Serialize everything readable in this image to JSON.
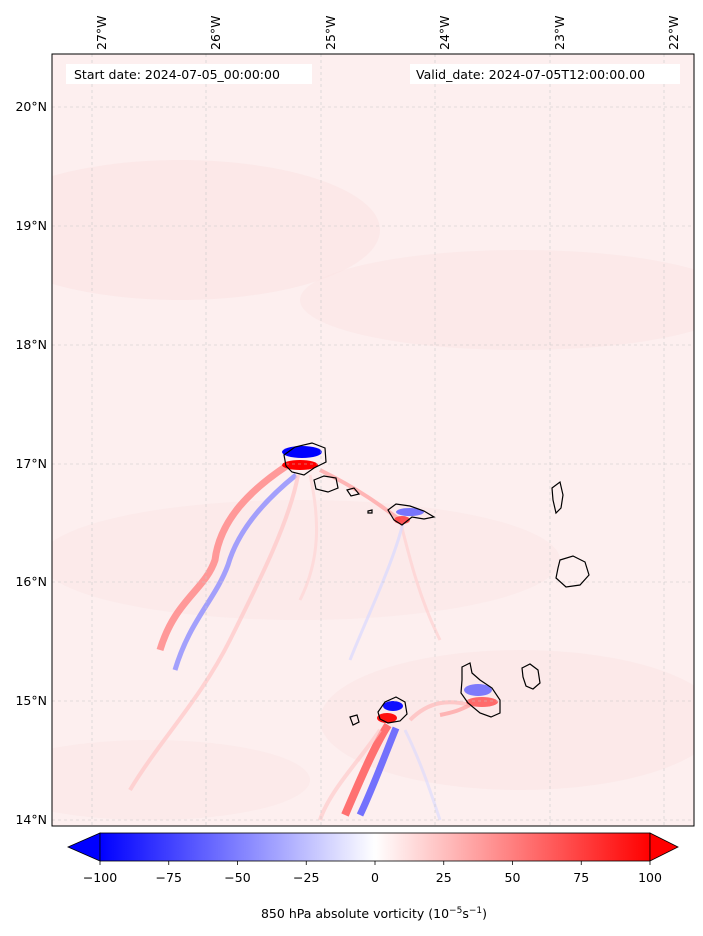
{
  "header": {
    "start_label": "Start date: 2024-07-05_00:00:00",
    "valid_label": "Valid_date: 2024-07-05T12:00:00.00"
  },
  "axes": {
    "lon_ticks": [
      "27°W",
      "26°W",
      "25°W",
      "24°W",
      "23°W",
      "22°W"
    ],
    "lat_ticks": [
      "20°N",
      "19°N",
      "18°N",
      "17°N",
      "16°N",
      "15°N",
      "14°N"
    ],
    "grid": "dashed"
  },
  "colorbar": {
    "ticks": [
      "−100",
      "−75",
      "−50",
      "−25",
      "0",
      "25",
      "50",
      "75",
      "100"
    ],
    "label_main": "850 hPa absolute vorticity (10",
    "label_exp1": "−5",
    "label_mid": "s",
    "label_exp2": "−1",
    "label_end": ")",
    "range": [
      -100,
      100
    ],
    "extend": "both",
    "colors": {
      "min": "#0000ff",
      "mid": "#ffffff",
      "max": "#ff0000"
    }
  },
  "colors": {
    "background_field": "#fdeeee",
    "coastline": "#000000"
  },
  "islands": [
    "santo-antao",
    "sao-vicente",
    "santa-luzia",
    "sao-nicolau",
    "sal",
    "boa-vista",
    "fogo",
    "brava",
    "santiago",
    "maio"
  ]
}
